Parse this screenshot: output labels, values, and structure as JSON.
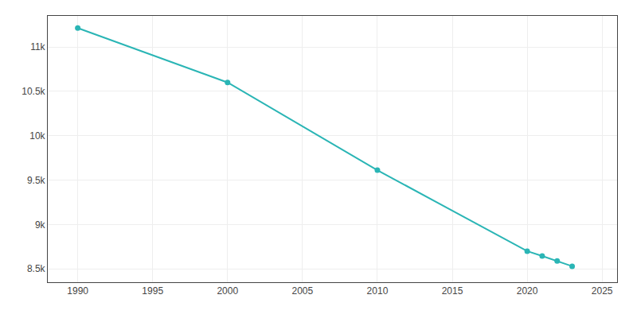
{
  "chart_data": {
    "type": "line",
    "x": [
      1990,
      2000,
      2010,
      2020,
      2021,
      2022,
      2023
    ],
    "values": [
      11213,
      10600,
      9612,
      8700,
      8645,
      8590,
      8530
    ],
    "color": "#2ab5b5",
    "marker": "circle",
    "xlim": [
      1988,
      2026
    ],
    "ylim": [
      8350,
      11350
    ],
    "xticks": [
      1990,
      1995,
      2000,
      2005,
      2010,
      2015,
      2020,
      2025
    ],
    "yticks": [
      {
        "value": 8500,
        "label": "8.5k"
      },
      {
        "value": 9000,
        "label": "9k"
      },
      {
        "value": 9500,
        "label": "9.5k"
      },
      {
        "value": 10000,
        "label": "10k"
      },
      {
        "value": 10500,
        "label": "10.5k"
      },
      {
        "value": 11000,
        "label": "11k"
      }
    ],
    "grid": true
  }
}
